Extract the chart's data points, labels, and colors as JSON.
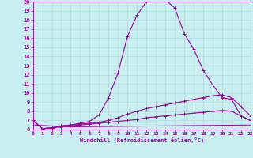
{
  "xlabel": "Windchill (Refroidissement éolien,°C)",
  "bg_color": "#c8eef0",
  "line_color": "#990099",
  "grid_color": "#aadddd",
  "xmin": 0,
  "xmax": 23,
  "ymin": 6,
  "ymax": 20,
  "lines": [
    {
      "x": [
        0,
        1,
        2,
        3,
        4,
        5,
        6,
        7,
        8,
        9,
        10,
        11,
        12,
        13,
        14,
        15,
        16,
        17,
        18,
        19,
        20,
        21,
        22,
        23
      ],
      "y": [
        7.0,
        6.1,
        6.2,
        6.4,
        6.5,
        6.7,
        6.9,
        7.6,
        9.5,
        12.2,
        16.2,
        18.5,
        20.0,
        20.3,
        20.2,
        19.3,
        16.5,
        14.8,
        12.5,
        10.9,
        9.5,
        9.3,
        7.5,
        7.0
      ],
      "marker": true
    },
    {
      "x": [
        0,
        1,
        2,
        3,
        4,
        5,
        6,
        7,
        8,
        9,
        10,
        11,
        12,
        13,
        14,
        15,
        16,
        17,
        18,
        19,
        20,
        21,
        22,
        23
      ],
      "y": [
        7.0,
        6.1,
        6.2,
        6.4,
        6.5,
        6.6,
        6.7,
        6.8,
        7.0,
        7.3,
        7.7,
        8.0,
        8.3,
        8.5,
        8.7,
        8.9,
        9.1,
        9.3,
        9.5,
        9.7,
        9.8,
        9.5,
        8.5,
        7.5
      ],
      "marker": true
    },
    {
      "x": [
        0,
        1,
        2,
        3,
        4,
        5,
        6,
        7,
        8,
        9,
        10,
        11,
        12,
        13,
        14,
        15,
        16,
        17,
        18,
        19,
        20,
        21,
        22,
        23
      ],
      "y": [
        7.0,
        6.1,
        6.2,
        6.3,
        6.4,
        6.5,
        6.6,
        6.7,
        6.8,
        6.9,
        7.0,
        7.1,
        7.3,
        7.4,
        7.5,
        7.6,
        7.7,
        7.8,
        7.9,
        8.0,
        8.1,
        8.0,
        7.5,
        7.0
      ],
      "marker": true
    },
    {
      "x": [
        0,
        4,
        23
      ],
      "y": [
        6.5,
        6.3,
        6.5
      ],
      "marker": false
    }
  ],
  "yticks": [
    6,
    7,
    8,
    9,
    10,
    11,
    12,
    13,
    14,
    15,
    16,
    17,
    18,
    19,
    20
  ],
  "xticks": [
    0,
    1,
    2,
    3,
    4,
    5,
    6,
    7,
    8,
    9,
    10,
    11,
    12,
    13,
    14,
    15,
    16,
    17,
    18,
    19,
    20,
    21,
    22,
    23
  ]
}
